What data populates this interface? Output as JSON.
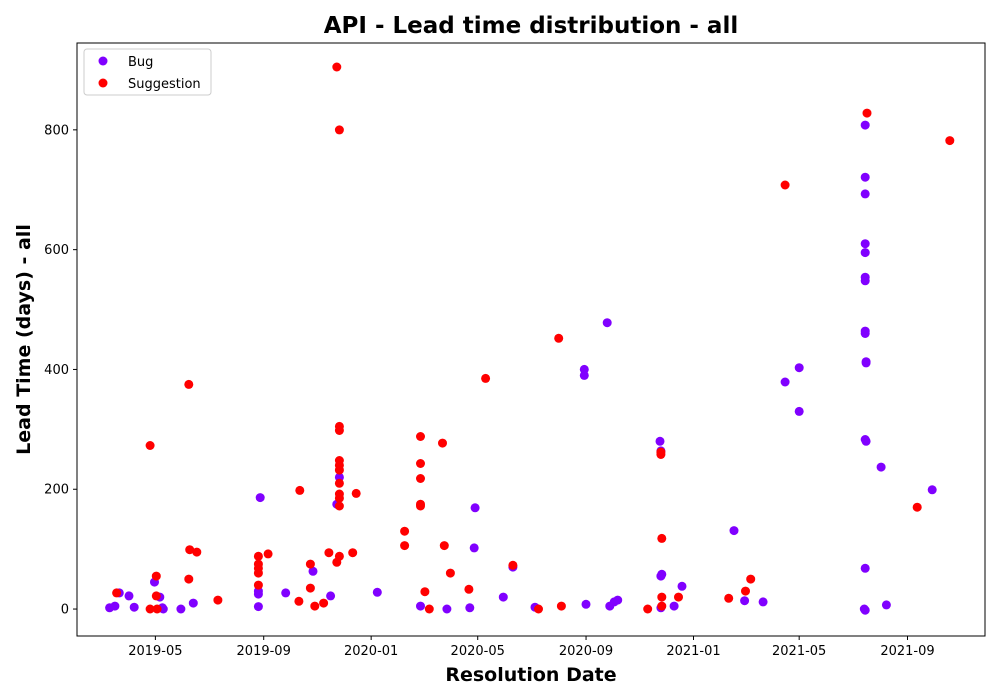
{
  "chart_data": {
    "type": "scatter",
    "title": "API - Lead time distribution - all",
    "xlabel": "Resolution Date",
    "ylabel": "Lead Time (days) - all",
    "xlim": [
      "2019-02-01",
      "2021-11-28"
    ],
    "ylim": [
      -45,
      945
    ],
    "x_ticks": [
      "2019-05-01",
      "2019-09-01",
      "2020-01-01",
      "2020-05-01",
      "2020-09-01",
      "2021-01-01",
      "2021-05-01",
      "2021-09-01"
    ],
    "x_tick_labels": [
      "2019-05",
      "2019-09",
      "2020-01",
      "2020-05",
      "2020-09",
      "2021-01",
      "2021-05",
      "2021-09"
    ],
    "y_ticks": [
      0,
      200,
      400,
      600,
      800
    ],
    "grid": false,
    "legend_position": "upper-left",
    "series": [
      {
        "name": "Bug",
        "color": "#8000ff",
        "points": [
          [
            "2019-03-10",
            2
          ],
          [
            "2019-03-16",
            5
          ],
          [
            "2019-03-21",
            27
          ],
          [
            "2019-04-01",
            22
          ],
          [
            "2019-04-07",
            3
          ],
          [
            "2019-04-30",
            45
          ],
          [
            "2019-05-06",
            20
          ],
          [
            "2019-05-09",
            2
          ],
          [
            "2019-05-10",
            0
          ],
          [
            "2019-05-30",
            0
          ],
          [
            "2019-06-13",
            10
          ],
          [
            "2019-08-26",
            4
          ],
          [
            "2019-08-26",
            25
          ],
          [
            "2019-08-26",
            30
          ],
          [
            "2019-08-28",
            186
          ],
          [
            "2019-09-26",
            27
          ],
          [
            "2019-10-27",
            63
          ],
          [
            "2019-11-16",
            22
          ],
          [
            "2019-11-23",
            175
          ],
          [
            "2019-11-26",
            220
          ],
          [
            "2020-01-08",
            28
          ],
          [
            "2020-02-26",
            5
          ],
          [
            "2020-03-27",
            0
          ],
          [
            "2020-04-22",
            2
          ],
          [
            "2020-04-27",
            102
          ],
          [
            "2020-04-28",
            169
          ],
          [
            "2020-05-30",
            20
          ],
          [
            "2020-06-10",
            70
          ],
          [
            "2020-07-05",
            3
          ],
          [
            "2020-08-30",
            400
          ],
          [
            "2020-08-30",
            390
          ],
          [
            "2020-09-01",
            8
          ],
          [
            "2020-09-25",
            478
          ],
          [
            "2020-09-28",
            5
          ],
          [
            "2020-10-03",
            12
          ],
          [
            "2020-10-07",
            15
          ],
          [
            "2020-11-24",
            280
          ],
          [
            "2020-11-25",
            264
          ],
          [
            "2020-11-25",
            55
          ],
          [
            "2020-11-26",
            58
          ],
          [
            "2020-11-25",
            2
          ],
          [
            "2020-12-10",
            5
          ],
          [
            "2020-12-19",
            38
          ],
          [
            "2021-02-16",
            131
          ],
          [
            "2021-02-28",
            14
          ],
          [
            "2021-03-21",
            12
          ],
          [
            "2021-04-15",
            379
          ],
          [
            "2021-05-01",
            403
          ],
          [
            "2021-05-01",
            330
          ],
          [
            "2021-07-15",
            808
          ],
          [
            "2021-07-15",
            721
          ],
          [
            "2021-07-15",
            693
          ],
          [
            "2021-07-15",
            610
          ],
          [
            "2021-07-15",
            595
          ],
          [
            "2021-07-15",
            554
          ],
          [
            "2021-07-15",
            548
          ],
          [
            "2021-07-15",
            464
          ],
          [
            "2021-07-15",
            460
          ],
          [
            "2021-07-16",
            413
          ],
          [
            "2021-07-16",
            411
          ],
          [
            "2021-07-15",
            283
          ],
          [
            "2021-07-16",
            280
          ],
          [
            "2021-07-15",
            68
          ],
          [
            "2021-07-14",
            0
          ],
          [
            "2021-07-15",
            -2
          ],
          [
            "2021-08-02",
            237
          ],
          [
            "2021-08-08",
            7
          ],
          [
            "2021-09-29",
            199
          ]
        ]
      },
      {
        "name": "Suggestion",
        "color": "#ff0000",
        "points": [
          [
            "2019-03-18",
            27
          ],
          [
            "2019-04-25",
            273
          ],
          [
            "2019-04-25",
            0
          ],
          [
            "2019-05-02",
            55
          ],
          [
            "2019-05-02",
            22
          ],
          [
            "2019-05-03",
            0
          ],
          [
            "2019-06-08",
            375
          ],
          [
            "2019-06-08",
            50
          ],
          [
            "2019-06-09",
            99
          ],
          [
            "2019-06-17",
            95
          ],
          [
            "2019-07-11",
            15
          ],
          [
            "2019-08-26",
            88
          ],
          [
            "2019-08-26",
            75
          ],
          [
            "2019-08-26",
            68
          ],
          [
            "2019-08-26",
            60
          ],
          [
            "2019-08-26",
            40
          ],
          [
            "2019-09-06",
            92
          ],
          [
            "2019-10-12",
            198
          ],
          [
            "2019-10-11",
            13
          ],
          [
            "2019-10-24",
            75
          ],
          [
            "2019-10-24",
            35
          ],
          [
            "2019-10-29",
            5
          ],
          [
            "2019-11-08",
            10
          ],
          [
            "2019-11-14",
            94
          ],
          [
            "2019-11-23",
            905
          ],
          [
            "2019-11-26",
            800
          ],
          [
            "2019-11-26",
            305
          ],
          [
            "2019-11-26",
            298
          ],
          [
            "2019-11-26",
            248
          ],
          [
            "2019-11-26",
            240
          ],
          [
            "2019-11-26",
            232
          ],
          [
            "2019-11-26",
            210
          ],
          [
            "2019-11-26",
            192
          ],
          [
            "2019-11-26",
            185
          ],
          [
            "2019-11-26",
            172
          ],
          [
            "2019-11-26",
            88
          ],
          [
            "2019-11-23",
            78
          ],
          [
            "2019-12-11",
            94
          ],
          [
            "2019-12-15",
            193
          ],
          [
            "2020-02-08",
            130
          ],
          [
            "2020-02-08",
            106
          ],
          [
            "2020-02-26",
            288
          ],
          [
            "2020-02-26",
            243
          ],
          [
            "2020-02-26",
            218
          ],
          [
            "2020-02-26",
            175
          ],
          [
            "2020-02-26",
            172
          ],
          [
            "2020-03-02",
            29
          ],
          [
            "2020-03-07",
            0
          ],
          [
            "2020-03-22",
            277
          ],
          [
            "2020-03-24",
            106
          ],
          [
            "2020-03-31",
            60
          ],
          [
            "2020-04-21",
            33
          ],
          [
            "2020-05-10",
            385
          ],
          [
            "2020-06-10",
            73
          ],
          [
            "2020-07-09",
            0
          ],
          [
            "2020-08-01",
            452
          ],
          [
            "2020-08-04",
            5
          ],
          [
            "2020-11-10",
            0
          ],
          [
            "2020-11-25",
            262
          ],
          [
            "2020-11-25",
            258
          ],
          [
            "2020-11-26",
            118
          ],
          [
            "2020-11-26",
            20
          ],
          [
            "2020-11-26",
            5
          ],
          [
            "2020-12-15",
            20
          ],
          [
            "2021-02-10",
            18
          ],
          [
            "2021-03-01",
            30
          ],
          [
            "2021-03-07",
            50
          ],
          [
            "2021-04-15",
            708
          ],
          [
            "2021-07-17",
            828
          ],
          [
            "2021-09-12",
            170
          ],
          [
            "2021-10-19",
            782
          ]
        ]
      }
    ]
  }
}
